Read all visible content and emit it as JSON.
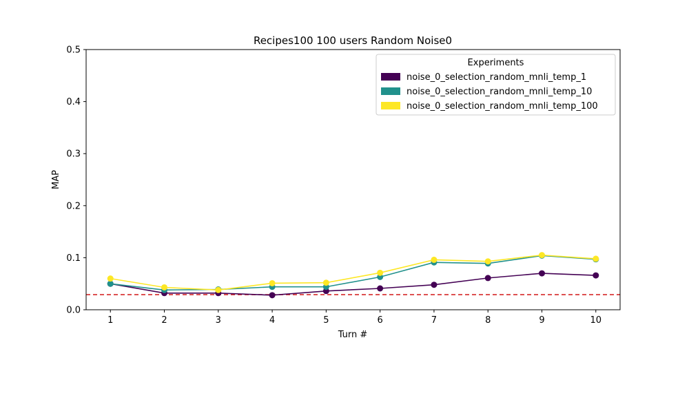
{
  "chart_data": {
    "type": "line",
    "title": "Recipes100 100 users Random Noise0",
    "xlabel": "Turn #",
    "ylabel": "MAP",
    "x": [
      1,
      2,
      3,
      4,
      5,
      6,
      7,
      8,
      9,
      10
    ],
    "xlim": [
      0.55,
      10.45
    ],
    "ylim": [
      0.0,
      0.5
    ],
    "yticks": [
      "0.0",
      "0.1",
      "0.2",
      "0.3",
      "0.4",
      "0.5"
    ],
    "xticks": [
      "1",
      "2",
      "3",
      "4",
      "5",
      "6",
      "7",
      "8",
      "9",
      "10"
    ],
    "grid": false,
    "legend": {
      "title": "Experiments",
      "placement": "top-right"
    },
    "reference_line": {
      "y": 0.029,
      "color": "#d62728",
      "style": "dashed"
    },
    "series": [
      {
        "name": "noise_0_selection_random_mnli_temp_1",
        "color": "#440154",
        "values": [
          0.05,
          0.032,
          0.032,
          0.028,
          0.036,
          0.041,
          0.048,
          0.061,
          0.07,
          0.066
        ]
      },
      {
        "name": "noise_0_selection_random_mnli_temp_10",
        "color": "#21918c",
        "values": [
          0.05,
          0.038,
          0.039,
          0.044,
          0.044,
          0.063,
          0.091,
          0.089,
          0.104,
          0.097
        ]
      },
      {
        "name": "noise_0_selection_random_mnli_temp_100",
        "color": "#fde725",
        "values": [
          0.06,
          0.043,
          0.038,
          0.051,
          0.052,
          0.071,
          0.096,
          0.093,
          0.105,
          0.098
        ]
      }
    ]
  }
}
